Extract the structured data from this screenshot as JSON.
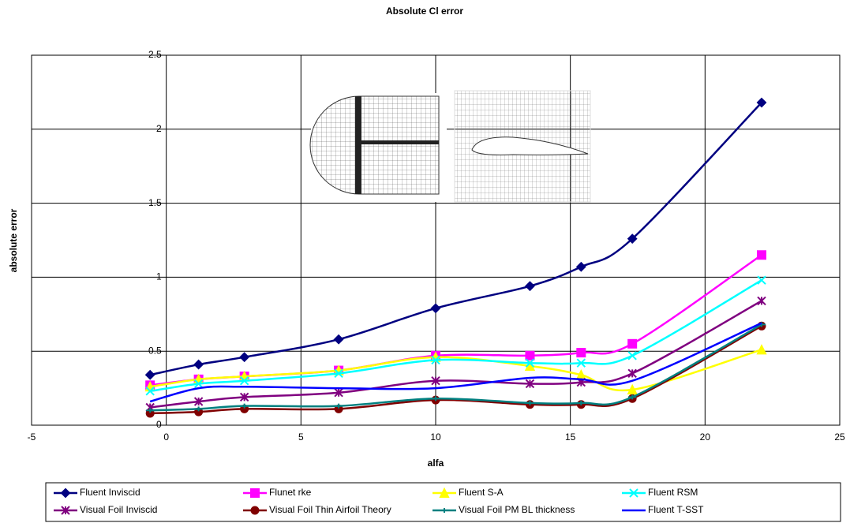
{
  "chart_data": {
    "type": "line",
    "title": "Absolute Cl error",
    "x_label": "alfa",
    "y_label": "absolute error",
    "x": [
      -0.6,
      1.2,
      2.9,
      6.4,
      10,
      13.5,
      15.4,
      17.3,
      22.1
    ],
    "series": [
      {
        "name": "Fluent Inviscid",
        "color": "#000080",
        "marker": "diamond",
        "values": [
          0.34,
          0.41,
          0.46,
          0.58,
          0.79,
          0.94,
          1.07,
          1.26,
          2.18
        ]
      },
      {
        "name": "Flunet rke",
        "color": "#ff00ff",
        "marker": "square",
        "values": [
          0.27,
          0.31,
          0.33,
          0.37,
          0.47,
          0.47,
          0.49,
          0.55,
          1.15
        ]
      },
      {
        "name": "Fluent S-A",
        "color": "#ffff00",
        "marker": "triangle",
        "values": [
          0.26,
          0.31,
          0.33,
          0.37,
          0.46,
          0.4,
          0.34,
          0.24,
          0.51
        ]
      },
      {
        "name": "Fluent RSM",
        "color": "#00ffff",
        "marker": "x",
        "values": [
          0.23,
          0.28,
          0.3,
          0.35,
          0.44,
          0.42,
          0.42,
          0.47,
          0.98
        ]
      },
      {
        "name": "Visual Foil Inviscid",
        "color": "#800080",
        "marker": "star",
        "values": [
          0.12,
          0.16,
          0.19,
          0.22,
          0.3,
          0.28,
          0.29,
          0.35,
          0.84
        ]
      },
      {
        "name": "Visual Foil Thin Airfoil Theory",
        "color": "#800000",
        "marker": "circle",
        "values": [
          0.08,
          0.09,
          0.11,
          0.11,
          0.17,
          0.14,
          0.14,
          0.18,
          0.67
        ]
      },
      {
        "name": "Visual Foil PM BL thickness",
        "color": "#008080",
        "marker": "plus",
        "values": [
          0.1,
          0.11,
          0.13,
          0.13,
          0.18,
          0.15,
          0.15,
          0.19,
          0.68
        ]
      },
      {
        "name": "Fluent T-SST",
        "color": "#0000ff",
        "marker": "none",
        "values": [
          0.16,
          0.25,
          0.26,
          0.25,
          0.25,
          0.32,
          0.31,
          0.3,
          0.69
        ]
      }
    ],
    "xlim": [
      -5,
      25
    ],
    "xticks": [
      -5,
      0,
      5,
      10,
      15,
      20,
      25
    ],
    "ylim": [
      0,
      2.5
    ],
    "yticks": [
      0,
      0.5,
      1,
      1.5,
      2,
      2.5
    ],
    "grid": true,
    "smooth": true,
    "legend": "bottom"
  }
}
